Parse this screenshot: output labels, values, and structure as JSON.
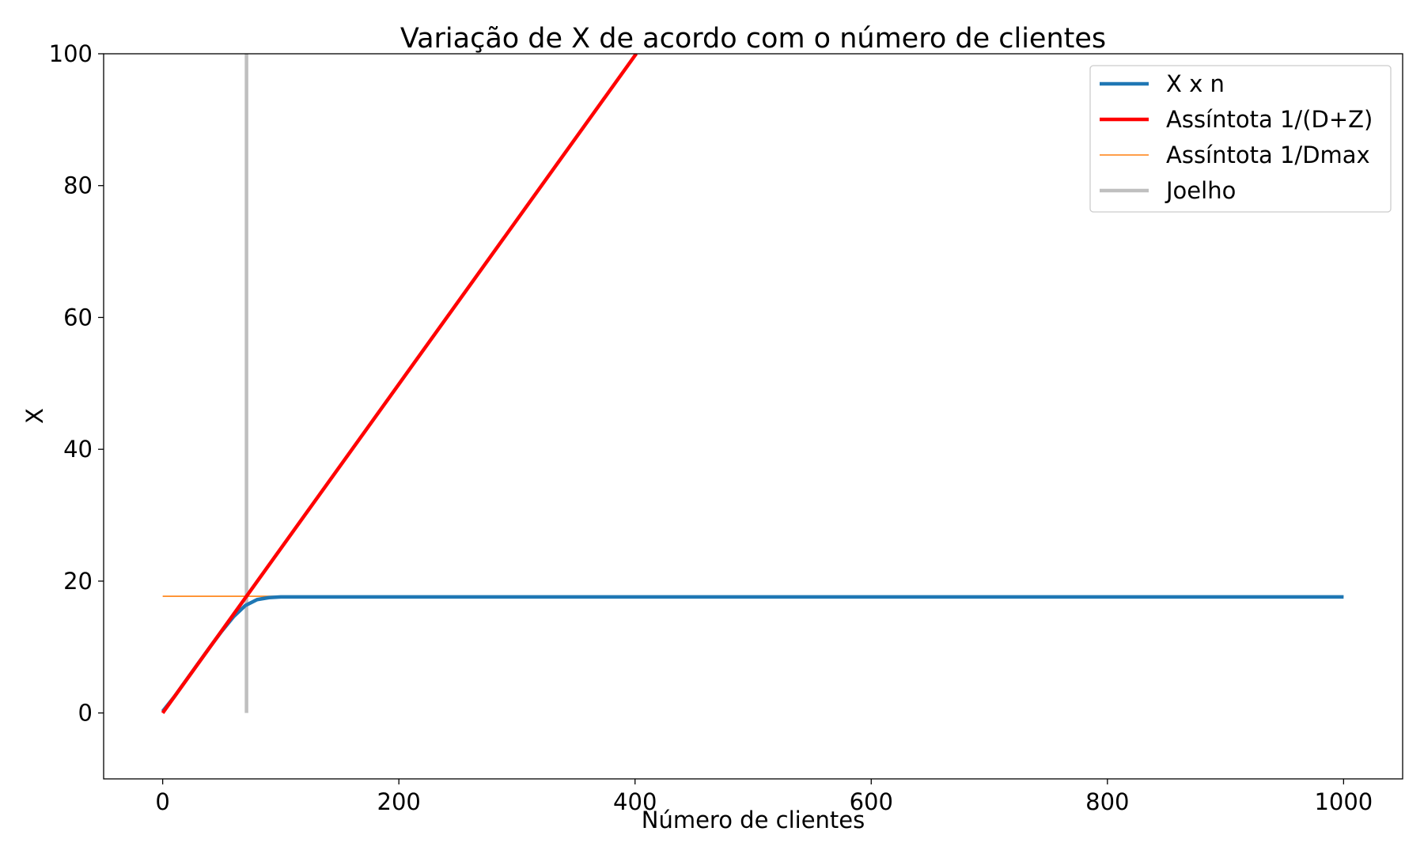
{
  "chart_data": {
    "type": "line",
    "title": "Variação de X de acordo com o número de clientes",
    "xlabel": "Número de clientes",
    "ylabel": "X",
    "xlim": [
      -50,
      1050
    ],
    "ylim": [
      -10,
      100
    ],
    "xticks": [
      0,
      200,
      400,
      600,
      800,
      1000
    ],
    "yticks": [
      0,
      20,
      40,
      60,
      80,
      100
    ],
    "grid": false,
    "legend_position": "top-right",
    "series": [
      {
        "name": "X x n",
        "color": "#1f77b4",
        "style": "thick",
        "x": [
          0,
          10,
          20,
          30,
          40,
          50,
          60,
          70,
          80,
          90,
          100,
          200,
          400,
          600,
          800,
          1000
        ],
        "y": [
          0.25,
          2.5,
          5.0,
          7.5,
          10.0,
          12.4,
          14.6,
          16.3,
          17.2,
          17.5,
          17.6,
          17.6,
          17.6,
          17.6,
          17.6,
          17.6
        ]
      },
      {
        "name": "Assíntota 1/(D+Z)",
        "color": "#ff0000",
        "style": "thick",
        "x": [
          0,
          401
        ],
        "y": [
          0,
          100
        ]
      },
      {
        "name": "Assíntota 1/Dmax",
        "color": "#ff7f0e",
        "style": "thin",
        "x": [
          0,
          1000
        ],
        "y": [
          17.7,
          17.7
        ]
      },
      {
        "name": "Joelho",
        "color": "#bfbfbf",
        "style": "thick",
        "x": [
          71,
          71
        ],
        "y": [
          0,
          100
        ]
      }
    ]
  }
}
